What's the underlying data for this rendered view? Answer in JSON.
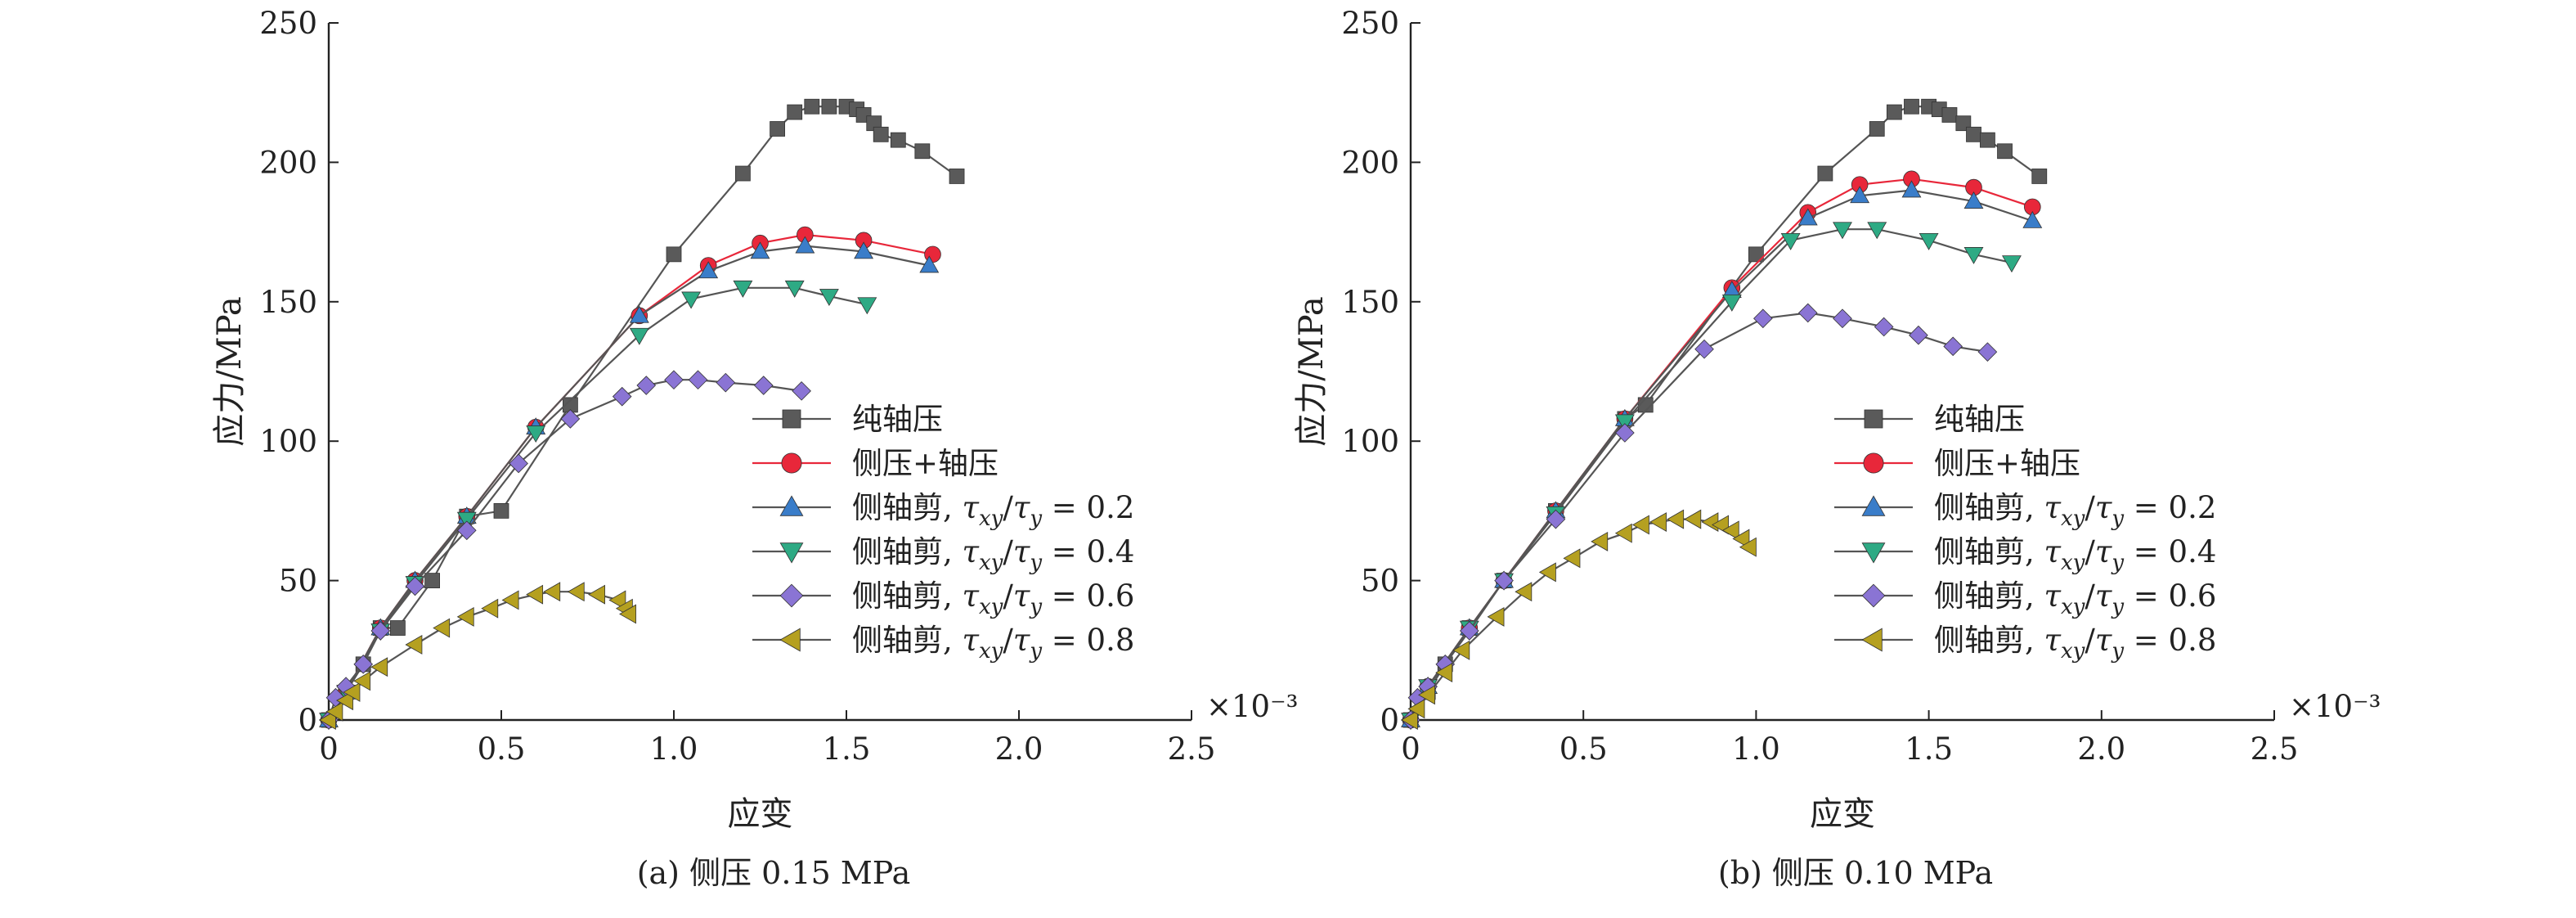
{
  "figure": {
    "panels": [
      {
        "caption": "(a) 侧压 0.15 MPa"
      },
      {
        "caption": "(b) 侧压 0.10 MPa"
      }
    ]
  },
  "chart_data": [
    {
      "type": "line",
      "title": "",
      "caption": "(a) 侧压 0.15 MPa",
      "xlabel": "应变",
      "ylabel": "应力/MPa",
      "x_multiplier": "×10⁻³",
      "xlim": [
        0,
        2.5
      ],
      "ylim": [
        0,
        250
      ],
      "xticks": [
        "0",
        "0.5",
        "1.0",
        "1.5",
        "2.0",
        "2.5"
      ],
      "yticks": [
        "0",
        "50",
        "100",
        "150",
        "200",
        "250"
      ],
      "grid": false,
      "legend_position": "bottom-right",
      "series": [
        {
          "name": "纯轴压",
          "marker": "square",
          "color": "#5a5a5a",
          "points": [
            [
              0,
              0
            ],
            [
              0.05,
              10
            ],
            [
              0.1,
              20
            ],
            [
              0.15,
              33
            ],
            [
              0.2,
              33
            ],
            [
              0.3,
              50
            ],
            [
              0.4,
              73
            ],
            [
              0.5,
              75
            ],
            [
              0.7,
              113
            ],
            [
              1.0,
              167
            ],
            [
              1.2,
              196
            ],
            [
              1.3,
              212
            ],
            [
              1.35,
              218
            ],
            [
              1.4,
              220
            ],
            [
              1.45,
              220
            ],
            [
              1.5,
              220
            ],
            [
              1.53,
              219
            ],
            [
              1.55,
              217
            ],
            [
              1.58,
              214
            ],
            [
              1.6,
              210
            ],
            [
              1.65,
              208
            ],
            [
              1.72,
              204
            ],
            [
              1.82,
              195
            ]
          ]
        },
        {
          "name": "侧压+轴压",
          "marker": "circle",
          "color": "#e8273a",
          "points": [
            [
              0,
              0
            ],
            [
              0.05,
              10
            ],
            [
              0.15,
              33
            ],
            [
              0.25,
              50
            ],
            [
              0.4,
              73
            ],
            [
              0.6,
              105
            ],
            [
              0.9,
              145
            ],
            [
              1.1,
              163
            ],
            [
              1.25,
              171
            ],
            [
              1.38,
              174
            ],
            [
              1.55,
              172
            ],
            [
              1.75,
              167
            ]
          ]
        },
        {
          "name": "侧轴剪, τxy/τy = 0.2",
          "marker": "triangle-up",
          "color": "#3a7dc9",
          "points": [
            [
              0,
              0
            ],
            [
              0.05,
              10
            ],
            [
              0.15,
              33
            ],
            [
              0.25,
              50
            ],
            [
              0.4,
              73
            ],
            [
              0.6,
              105
            ],
            [
              0.9,
              145
            ],
            [
              1.1,
              161
            ],
            [
              1.25,
              168
            ],
            [
              1.38,
              170
            ],
            [
              1.55,
              168
            ],
            [
              1.74,
              163
            ]
          ]
        },
        {
          "name": "侧轴剪, τxy/τy = 0.4",
          "marker": "triangle-down",
          "color": "#2eaa84",
          "points": [
            [
              0,
              0
            ],
            [
              0.05,
              10
            ],
            [
              0.15,
              32
            ],
            [
              0.25,
              49
            ],
            [
              0.4,
              72
            ],
            [
              0.6,
              103
            ],
            [
              0.9,
              138
            ],
            [
              1.05,
              151
            ],
            [
              1.2,
              155
            ],
            [
              1.35,
              155
            ],
            [
              1.45,
              152
            ],
            [
              1.56,
              149
            ]
          ]
        },
        {
          "name": "侧轴剪, τxy/τy = 0.6",
          "marker": "diamond",
          "color": "#8a74d4",
          "points": [
            [
              0,
              0
            ],
            [
              0.02,
              8
            ],
            [
              0.05,
              12
            ],
            [
              0.1,
              20
            ],
            [
              0.15,
              32
            ],
            [
              0.25,
              48
            ],
            [
              0.4,
              68
            ],
            [
              0.55,
              92
            ],
            [
              0.7,
              108
            ],
            [
              0.85,
              116
            ],
            [
              0.92,
              120
            ],
            [
              1.0,
              122
            ],
            [
              1.07,
              122
            ],
            [
              1.15,
              121
            ],
            [
              1.26,
              120
            ],
            [
              1.37,
              118
            ]
          ]
        },
        {
          "name": "侧轴剪, τxy/τy = 0.8",
          "marker": "triangle-left",
          "color": "#b5a020",
          "points": [
            [
              0,
              0
            ],
            [
              0.02,
              3
            ],
            [
              0.05,
              7
            ],
            [
              0.07,
              10
            ],
            [
              0.1,
              14
            ],
            [
              0.15,
              19
            ],
            [
              0.25,
              27
            ],
            [
              0.33,
              33
            ],
            [
              0.4,
              37
            ],
            [
              0.47,
              40
            ],
            [
              0.53,
              43
            ],
            [
              0.6,
              45
            ],
            [
              0.65,
              46
            ],
            [
              0.72,
              46
            ],
            [
              0.78,
              45
            ],
            [
              0.84,
              43
            ],
            [
              0.86,
              40
            ],
            [
              0.87,
              38
            ]
          ]
        }
      ]
    },
    {
      "type": "line",
      "title": "",
      "caption": "(b) 侧压 0.10 MPa",
      "xlabel": "应变",
      "ylabel": "应力/MPa",
      "x_multiplier": "×10⁻³",
      "xlim": [
        0,
        2.5
      ],
      "ylim": [
        0,
        250
      ],
      "xticks": [
        "0",
        "0.5",
        "1.0",
        "1.5",
        "2.0",
        "2.5"
      ],
      "yticks": [
        "0",
        "50",
        "100",
        "150",
        "200",
        "250"
      ],
      "grid": false,
      "legend_position": "bottom-right",
      "series": [
        {
          "name": "纯轴压",
          "marker": "square",
          "color": "#5a5a5a",
          "points": [
            [
              0,
              0
            ],
            [
              0.05,
              10
            ],
            [
              0.1,
              20
            ],
            [
              0.17,
              33
            ],
            [
              0.27,
              50
            ],
            [
              0.42,
              75
            ],
            [
              0.62,
              108
            ],
            [
              0.68,
              113
            ],
            [
              1.0,
              167
            ],
            [
              1.2,
              196
            ],
            [
              1.35,
              212
            ],
            [
              1.4,
              218
            ],
            [
              1.45,
              220
            ],
            [
              1.5,
              220
            ],
            [
              1.53,
              219
            ],
            [
              1.56,
              217
            ],
            [
              1.6,
              214
            ],
            [
              1.63,
              210
            ],
            [
              1.67,
              208
            ],
            [
              1.72,
              204
            ],
            [
              1.82,
              195
            ]
          ]
        },
        {
          "name": "侧压+轴压",
          "marker": "circle",
          "color": "#e8273a",
          "points": [
            [
              0,
              0
            ],
            [
              0.05,
              12
            ],
            [
              0.17,
              33
            ],
            [
              0.27,
              50
            ],
            [
              0.42,
              75
            ],
            [
              0.62,
              108
            ],
            [
              0.93,
              155
            ],
            [
              1.15,
              182
            ],
            [
              1.3,
              192
            ],
            [
              1.45,
              194
            ],
            [
              1.63,
              191
            ],
            [
              1.8,
              184
            ]
          ]
        },
        {
          "name": "侧轴剪, τxy/τy = 0.2",
          "marker": "triangle-up",
          "color": "#3a7dc9",
          "points": [
            [
              0,
              0
            ],
            [
              0.05,
              12
            ],
            [
              0.17,
              33
            ],
            [
              0.27,
              50
            ],
            [
              0.42,
              75
            ],
            [
              0.62,
              108
            ],
            [
              0.93,
              154
            ],
            [
              1.15,
              180
            ],
            [
              1.3,
              188
            ],
            [
              1.45,
              190
            ],
            [
              1.63,
              186
            ],
            [
              1.8,
              179
            ]
          ]
        },
        {
          "name": "侧轴剪, τxy/τy = 0.4",
          "marker": "triangle-down",
          "color": "#2eaa84",
          "points": [
            [
              0,
              0
            ],
            [
              0.05,
              12
            ],
            [
              0.17,
              33
            ],
            [
              0.27,
              50
            ],
            [
              0.42,
              74
            ],
            [
              0.62,
              107
            ],
            [
              0.93,
              150
            ],
            [
              1.1,
              172
            ],
            [
              1.25,
              176
            ],
            [
              1.35,
              176
            ],
            [
              1.5,
              172
            ],
            [
              1.63,
              167
            ],
            [
              1.74,
              164
            ]
          ]
        },
        {
          "name": "侧轴剪, τxy/τy = 0.6",
          "marker": "diamond",
          "color": "#8a74d4",
          "points": [
            [
              0,
              0
            ],
            [
              0.02,
              8
            ],
            [
              0.05,
              12
            ],
            [
              0.1,
              20
            ],
            [
              0.17,
              32
            ],
            [
              0.27,
              50
            ],
            [
              0.42,
              72
            ],
            [
              0.62,
              103
            ],
            [
              0.85,
              133
            ],
            [
              1.02,
              144
            ],
            [
              1.15,
              146
            ],
            [
              1.25,
              144
            ],
            [
              1.37,
              141
            ],
            [
              1.47,
              138
            ],
            [
              1.57,
              134
            ],
            [
              1.67,
              132
            ]
          ]
        },
        {
          "name": "侧轴剪, τxy/τy = 0.8",
          "marker": "triangle-left",
          "color": "#b5a020",
          "points": [
            [
              0,
              0
            ],
            [
              0.02,
              4
            ],
            [
              0.05,
              9
            ],
            [
              0.1,
              17
            ],
            [
              0.15,
              25
            ],
            [
              0.25,
              37
            ],
            [
              0.33,
              46
            ],
            [
              0.4,
              53
            ],
            [
              0.47,
              58
            ],
            [
              0.55,
              64
            ],
            [
              0.62,
              67
            ],
            [
              0.67,
              70
            ],
            [
              0.72,
              71
            ],
            [
              0.77,
              72
            ],
            [
              0.82,
              72
            ],
            [
              0.87,
              71
            ],
            [
              0.9,
              70
            ],
            [
              0.93,
              68
            ],
            [
              0.96,
              65
            ],
            [
              0.98,
              62
            ]
          ]
        }
      ]
    }
  ]
}
